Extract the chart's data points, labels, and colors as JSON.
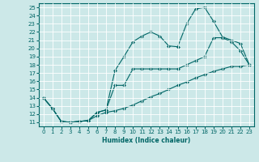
{
  "title": "",
  "xlabel": "Humidex (Indice chaleur)",
  "background_color": "#cce8e8",
  "grid_color": "#aacccc",
  "line_color": "#006666",
  "xlim": [
    -0.5,
    23.5
  ],
  "ylim": [
    10.5,
    25.5
  ],
  "xticks": [
    0,
    1,
    2,
    3,
    4,
    5,
    6,
    7,
    8,
    9,
    10,
    11,
    12,
    13,
    14,
    15,
    16,
    17,
    18,
    19,
    20,
    21,
    22,
    23
  ],
  "yticks": [
    11,
    12,
    13,
    14,
    15,
    16,
    17,
    18,
    19,
    20,
    21,
    22,
    23,
    24,
    25
  ],
  "line1_x": [
    0,
    1,
    2,
    3,
    4,
    5,
    6,
    7,
    8,
    9,
    10,
    11,
    12,
    13,
    14,
    15,
    16,
    17,
    18,
    19,
    20,
    21,
    22,
    23
  ],
  "line1_y": [
    14.0,
    12.7,
    11.1,
    11.0,
    11.1,
    11.2,
    11.8,
    12.2,
    12.4,
    12.7,
    13.1,
    13.6,
    14.1,
    14.5,
    15.0,
    15.5,
    15.9,
    16.4,
    16.8,
    17.2,
    17.5,
    17.8,
    17.8,
    18.0
  ],
  "line2_x": [
    0,
    1,
    2,
    3,
    4,
    5,
    6,
    7,
    8,
    9,
    10,
    11,
    12,
    13,
    14,
    15,
    16,
    17,
    18,
    19,
    20,
    21,
    22,
    23
  ],
  "line2_y": [
    14.0,
    12.7,
    11.1,
    11.0,
    11.1,
    11.2,
    12.2,
    12.5,
    17.3,
    19.0,
    20.8,
    21.5,
    22.0,
    21.5,
    20.3,
    20.2,
    23.0,
    24.8,
    25.0,
    23.3,
    21.4,
    21.0,
    20.6,
    18.0
  ],
  "line3_x": [
    0,
    1,
    2,
    3,
    4,
    5,
    6,
    7,
    8,
    9,
    10,
    11,
    12,
    13,
    14,
    15,
    16,
    17,
    18,
    19,
    20,
    21,
    22,
    23
  ],
  "line3_y": [
    14.0,
    12.7,
    11.1,
    11.0,
    11.1,
    11.2,
    12.2,
    12.5,
    15.5,
    15.5,
    17.5,
    17.5,
    17.5,
    17.5,
    17.5,
    17.5,
    18.0,
    18.5,
    19.0,
    21.3,
    21.3,
    20.8,
    19.7,
    18.0
  ]
}
